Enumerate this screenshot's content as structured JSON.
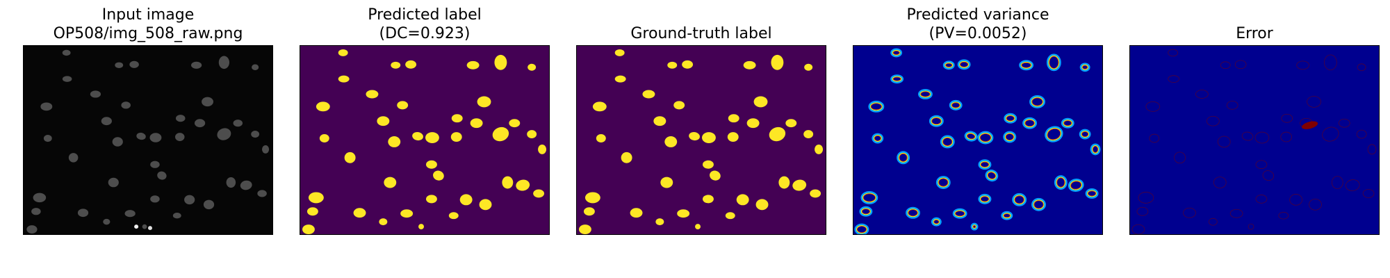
{
  "panels": [
    {
      "id": "input",
      "title_lines": [
        "Input image",
        "OP508/img_508_raw.png"
      ],
      "colormap": "gray"
    },
    {
      "id": "pred",
      "title_lines": [
        "Predicted label",
        "(DC=0.923)"
      ],
      "colormap": "viridis"
    },
    {
      "id": "gt",
      "title_lines": [
        "Ground-truth label"
      ],
      "colormap": "viridis"
    },
    {
      "id": "var",
      "title_lines": [
        "Predicted variance",
        "(PV=0.0052)"
      ],
      "colormap": "jet"
    },
    {
      "id": "err",
      "title_lines": [
        "Error"
      ],
      "colormap": "jet"
    }
  ],
  "colors": {
    "gray_bg": "#060606",
    "gray_cell": "#5a5a5a",
    "viridis_bg": "#440154",
    "viridis_cell": "#fde725",
    "jet_bg": "#00008f",
    "jet_ring_outer": "#00a0ff",
    "jet_ring_mid": "#ffff00",
    "jet_ring_inner": "#ff3000",
    "err_ring": "#7f0000"
  }
}
